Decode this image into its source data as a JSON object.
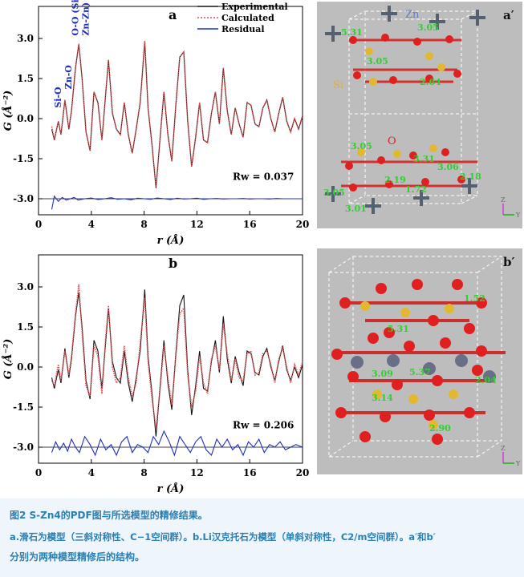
{
  "chart_data": [
    {
      "type": "line",
      "panel_label": "a",
      "xlabel": "r (Å)",
      "ylabel": "G (Å⁻²)",
      "xlim": [
        0,
        20
      ],
      "ylim": [
        -3.6,
        4.2
      ],
      "xticks": [
        0,
        4,
        8,
        12,
        16,
        20
      ],
      "yticks": [
        -3.0,
        -1.5,
        0.0,
        1.5,
        3.0
      ],
      "ytick_labels": [
        "-3.0",
        "-1.5",
        "0.0",
        "1.5",
        "3.0"
      ],
      "legend": [
        "Experimental",
        "Calculated",
        "Residual"
      ],
      "legend_position": "top-right",
      "rw_text": "Rw = 0.037",
      "annotations": [
        "Si-O",
        "Zn-O",
        "O-O (Si-Si,",
        "Zn-Zn)"
      ],
      "series": [
        {
          "name": "Experimental",
          "color": "#111111",
          "x": [
            1.0,
            1.2,
            1.5,
            1.7,
            2.0,
            2.3,
            2.5,
            2.8,
            3.05,
            3.3,
            3.6,
            3.9,
            4.2,
            4.5,
            4.8,
            5.1,
            5.3,
            5.6,
            5.9,
            6.2,
            6.5,
            6.8,
            7.1,
            7.4,
            7.7,
            8.05,
            8.3,
            8.6,
            8.9,
            9.2,
            9.5,
            9.8,
            10.1,
            10.4,
            10.7,
            11.0,
            11.3,
            11.6,
            11.9,
            12.2,
            12.5,
            12.8,
            13.1,
            13.4,
            13.7,
            14.0,
            14.3,
            14.6,
            14.9,
            15.2,
            15.5,
            15.8,
            16.1,
            16.4,
            16.7,
            17.0,
            17.3,
            17.6,
            17.9,
            18.2,
            18.5,
            18.8,
            19.1,
            19.4,
            19.7,
            20.0
          ],
          "y": [
            -0.4,
            -0.8,
            -0.1,
            -0.6,
            0.7,
            -0.4,
            0.3,
            1.9,
            2.8,
            1.5,
            -0.5,
            -1.2,
            1.0,
            0.6,
            -0.8,
            1.0,
            2.2,
            0.2,
            -0.4,
            -0.6,
            0.6,
            -0.6,
            -1.3,
            -0.4,
            0.6,
            2.9,
            0.4,
            -1.0,
            -2.6,
            -0.8,
            1.0,
            -0.6,
            -1.6,
            0.5,
            2.3,
            2.5,
            -0.1,
            -1.8,
            -0.7,
            0.6,
            -0.8,
            -0.9,
            0.2,
            1.0,
            -0.2,
            1.9,
            0.3,
            -0.6,
            0.4,
            -0.2,
            -0.7,
            0.6,
            0.5,
            -0.2,
            -0.3,
            0.4,
            0.7,
            0.0,
            -0.5,
            0.2,
            0.8,
            -0.1,
            -0.5,
            0.0,
            -0.4,
            0.1
          ]
        },
        {
          "name": "Calculated",
          "color": "#e05050",
          "x": [
            1.0,
            1.2,
            1.5,
            1.7,
            2.0,
            2.3,
            2.5,
            2.8,
            3.05,
            3.3,
            3.6,
            3.9,
            4.2,
            4.5,
            4.8,
            5.1,
            5.3,
            5.6,
            5.9,
            6.2,
            6.5,
            6.8,
            7.1,
            7.4,
            7.7,
            8.05,
            8.3,
            8.6,
            8.9,
            9.2,
            9.5,
            9.8,
            10.1,
            10.4,
            10.7,
            11.0,
            11.3,
            11.6,
            11.9,
            12.2,
            12.5,
            12.8,
            13.1,
            13.4,
            13.7,
            14.0,
            14.3,
            14.6,
            14.9,
            15.2,
            15.5,
            15.8,
            16.1,
            16.4,
            16.7,
            17.0,
            17.3,
            17.6,
            17.9,
            18.2,
            18.5,
            18.8,
            19.1,
            19.4,
            19.7,
            20.0
          ],
          "y": [
            -0.3,
            -0.8,
            -0.1,
            -0.6,
            0.7,
            -0.4,
            0.3,
            1.9,
            2.8,
            1.5,
            -0.5,
            -1.2,
            1.0,
            0.6,
            -0.8,
            1.0,
            2.2,
            0.2,
            -0.4,
            -0.6,
            0.6,
            -0.6,
            -1.3,
            -0.4,
            0.6,
            2.9,
            0.4,
            -1.0,
            -2.6,
            -0.8,
            1.0,
            -0.6,
            -1.6,
            0.5,
            2.3,
            2.5,
            -0.1,
            -1.8,
            -0.7,
            0.6,
            -0.8,
            -0.9,
            0.2,
            1.0,
            -0.2,
            1.9,
            0.3,
            -0.6,
            0.4,
            -0.2,
            -0.7,
            0.6,
            0.5,
            -0.2,
            -0.3,
            0.4,
            0.7,
            0.0,
            -0.5,
            0.2,
            0.8,
            -0.1,
            -0.5,
            0.0,
            -0.4,
            0.1
          ]
        },
        {
          "name": "Residual",
          "color": "#1f2fc0",
          "x": [
            1.0,
            1.2,
            1.5,
            1.8,
            2.1,
            2.4,
            2.7,
            3.0,
            3.5,
            4.0,
            4.5,
            5.0,
            5.5,
            6.0,
            6.5,
            7.0,
            7.5,
            8.0,
            8.5,
            9.0,
            9.5,
            10.0,
            10.5,
            11.0,
            11.5,
            12.0,
            12.5,
            13.0,
            13.5,
            14.0,
            14.5,
            15.0,
            15.5,
            16.0,
            16.5,
            17.0,
            17.5,
            18.0,
            18.5,
            19.0,
            19.5,
            20.0
          ],
          "y": [
            -3.4,
            -2.9,
            -3.1,
            -2.95,
            -3.05,
            -3.0,
            -2.95,
            -3.05,
            -3.0,
            -2.97,
            -3.03,
            -3.0,
            -2.96,
            -3.02,
            -3.0,
            -3.04,
            -2.98,
            -3.0,
            -3.02,
            -2.97,
            -3.0,
            -3.03,
            -2.98,
            -3.01,
            -3.0,
            -2.98,
            -3.02,
            -3.0,
            -2.99,
            -3.01,
            -3.0,
            -3.0,
            -2.99,
            -3.01,
            -3.0,
            -3.0,
            -3.01,
            -2.99,
            -3.0,
            -3.0,
            -3.0,
            -3.0
          ]
        }
      ]
    },
    {
      "type": "line",
      "panel_label": "b",
      "xlabel": "r (Å)",
      "ylabel": "G (Å⁻²)",
      "xlim": [
        0,
        20
      ],
      "ylim": [
        -3.6,
        4.2
      ],
      "xticks": [
        0,
        4,
        8,
        12,
        16,
        20
      ],
      "yticks": [
        -3.0,
        -1.5,
        0.0,
        1.5,
        3.0
      ],
      "ytick_labels": [
        "-3.0",
        "-1.5",
        "0.0",
        "1.5",
        "3.0"
      ],
      "rw_text": "Rw = 0.206",
      "series": [
        {
          "name": "Experimental",
          "color": "#111111",
          "x": [
            1.0,
            1.2,
            1.5,
            1.7,
            2.0,
            2.3,
            2.5,
            2.8,
            3.05,
            3.3,
            3.6,
            3.9,
            4.2,
            4.5,
            4.8,
            5.1,
            5.3,
            5.6,
            5.9,
            6.2,
            6.5,
            6.8,
            7.1,
            7.4,
            7.7,
            8.05,
            8.3,
            8.6,
            8.9,
            9.2,
            9.5,
            9.8,
            10.1,
            10.4,
            10.7,
            11.0,
            11.3,
            11.6,
            11.9,
            12.2,
            12.5,
            12.8,
            13.1,
            13.4,
            13.7,
            14.0,
            14.3,
            14.6,
            14.9,
            15.2,
            15.5,
            15.8,
            16.1,
            16.4,
            16.7,
            17.0,
            17.3,
            17.6,
            17.9,
            18.2,
            18.5,
            18.8,
            19.1,
            19.4,
            19.7,
            20.0
          ],
          "y": [
            -0.4,
            -0.8,
            -0.1,
            -0.6,
            0.7,
            -0.4,
            0.3,
            1.9,
            2.8,
            1.5,
            -0.5,
            -1.2,
            1.0,
            0.6,
            -0.8,
            1.0,
            2.2,
            0.2,
            -0.4,
            -0.6,
            0.6,
            -0.6,
            -1.3,
            -0.4,
            0.6,
            2.9,
            0.4,
            -1.0,
            -2.6,
            -0.8,
            1.0,
            -0.6,
            -1.6,
            0.5,
            2.3,
            2.7,
            -0.1,
            -1.8,
            -0.7,
            0.6,
            -0.8,
            -0.9,
            0.2,
            1.0,
            -0.2,
            1.9,
            0.3,
            -0.6,
            0.4,
            -0.2,
            -0.7,
            0.6,
            0.5,
            -0.2,
            -0.3,
            0.4,
            0.7,
            0.0,
            -0.5,
            0.2,
            0.8,
            -0.1,
            -0.5,
            0.0,
            -0.4,
            0.1
          ]
        },
        {
          "name": "Calculated",
          "color": "#e05050",
          "x": [
            1.0,
            1.2,
            1.5,
            1.7,
            2.0,
            2.3,
            2.5,
            2.8,
            3.05,
            3.3,
            3.6,
            3.9,
            4.2,
            4.5,
            4.8,
            5.1,
            5.3,
            5.6,
            5.9,
            6.2,
            6.5,
            6.8,
            7.1,
            7.4,
            7.7,
            8.05,
            8.3,
            8.6,
            8.9,
            9.2,
            9.5,
            9.8,
            10.1,
            10.4,
            10.7,
            11.0,
            11.3,
            11.6,
            11.9,
            12.2,
            12.5,
            12.8,
            13.1,
            13.4,
            13.7,
            14.0,
            14.3,
            14.6,
            14.9,
            15.2,
            15.5,
            15.8,
            16.1,
            16.4,
            16.7,
            17.0,
            17.3,
            17.6,
            17.9,
            18.2,
            18.5,
            18.8,
            19.1,
            19.4,
            19.7,
            20.0
          ],
          "y": [
            -0.5,
            -0.7,
            0.1,
            -0.5,
            0.6,
            -0.3,
            0.4,
            2.0,
            3.1,
            1.3,
            -0.7,
            -1.1,
            0.8,
            0.4,
            -1.0,
            1.2,
            2.3,
            0.0,
            -0.6,
            -0.4,
            0.8,
            -0.4,
            -1.1,
            -0.6,
            0.9,
            2.6,
            0.2,
            -1.2,
            -2.3,
            -0.9,
            0.8,
            -0.4,
            -1.4,
            0.4,
            2.0,
            2.2,
            -0.3,
            -1.5,
            -0.9,
            0.4,
            -0.6,
            -1.0,
            0.3,
            0.8,
            -0.1,
            1.6,
            0.5,
            -0.5,
            0.3,
            -0.4,
            -0.5,
            0.5,
            0.6,
            -0.3,
            -0.2,
            0.5,
            0.6,
            0.1,
            -0.6,
            0.3,
            0.7,
            0.0,
            -0.6,
            0.1,
            -0.3,
            0.2
          ]
        },
        {
          "name": "Residual",
          "color": "#1f2fc0",
          "x": [
            1.0,
            1.3,
            1.6,
            1.9,
            2.2,
            2.5,
            2.8,
            3.1,
            3.5,
            3.9,
            4.3,
            4.7,
            5.1,
            5.5,
            5.9,
            6.3,
            6.7,
            7.1,
            7.5,
            7.9,
            8.3,
            8.7,
            9.1,
            9.5,
            9.9,
            10.3,
            10.7,
            11.1,
            11.5,
            11.9,
            12.3,
            12.7,
            13.1,
            13.5,
            13.9,
            14.3,
            14.7,
            15.1,
            15.5,
            15.9,
            16.3,
            16.7,
            17.1,
            17.5,
            17.9,
            18.3,
            18.7,
            19.1,
            19.5,
            20.0
          ],
          "y": [
            -3.2,
            -2.8,
            -3.1,
            -2.85,
            -3.15,
            -2.7,
            -3.0,
            -3.2,
            -2.6,
            -2.9,
            -3.3,
            -2.7,
            -3.1,
            -2.9,
            -3.3,
            -2.8,
            -2.6,
            -3.2,
            -2.9,
            -3.0,
            -3.2,
            -2.6,
            -2.9,
            -2.4,
            -2.8,
            -3.3,
            -2.6,
            -2.9,
            -3.2,
            -2.8,
            -2.6,
            -3.1,
            -3.3,
            -2.7,
            -3.0,
            -2.7,
            -3.1,
            -2.9,
            -3.3,
            -2.8,
            -3.0,
            -2.7,
            -3.2,
            -2.9,
            -3.0,
            -2.8,
            -3.1,
            -3.0,
            -2.9,
            -3.0
          ]
        }
      ]
    }
  ],
  "structure_a": {
    "label": "a′",
    "element_labels": [
      "Zn",
      "Si",
      "O"
    ],
    "distances": [
      "5.31",
      "3.05",
      "3.05",
      "2.64",
      "3.05",
      "3.31",
      "2.18",
      "2.19",
      "3.01",
      "3.05",
      "1.72",
      "3.06"
    ],
    "axis_labels": [
      "Z",
      "Y"
    ]
  },
  "structure_b": {
    "label": "b′",
    "distances": [
      "1.52",
      "5.31",
      "3.09",
      "5.37",
      "3.14",
      "2.04",
      "2.90"
    ],
    "axis_labels": [
      "Z",
      "Y"
    ]
  },
  "caption": {
    "line1": "图2   S-Zn4的PDF图与所选模型的精修结果。",
    "line2": "a.滑石为模型（三斜对称性、C−1空间群）。b.Li汉克托石为模型（单斜对称性，C2/m空间群）。a′和b′",
    "line3": "分别为两种模型精修后的结构。"
  }
}
